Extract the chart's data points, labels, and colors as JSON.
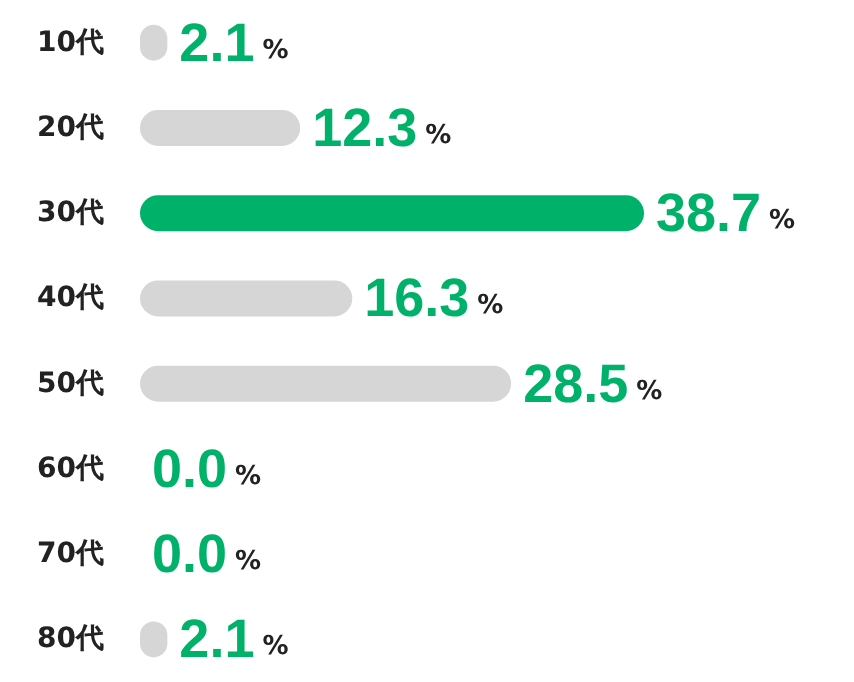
{
  "chart_data": {
    "type": "bar",
    "orientation": "horizontal",
    "categories": [
      "10代",
      "20代",
      "30代",
      "40代",
      "50代",
      "60代",
      "70代",
      "80代"
    ],
    "values": [
      2.1,
      12.3,
      38.7,
      16.3,
      28.5,
      0.0,
      0.0,
      2.1
    ],
    "colors": [
      "#d6d6d6",
      "#d6d6d6",
      "#00b16a",
      "#d6d6d6",
      "#d6d6d6",
      "#d6d6d6",
      "#d6d6d6",
      "#d6d6d6"
    ],
    "value_labels": [
      "2.1%",
      "12.3%",
      "38.7%",
      "16.3%",
      "28.5%",
      "0.0%",
      "0.0%",
      "2.1%"
    ]
  }
}
